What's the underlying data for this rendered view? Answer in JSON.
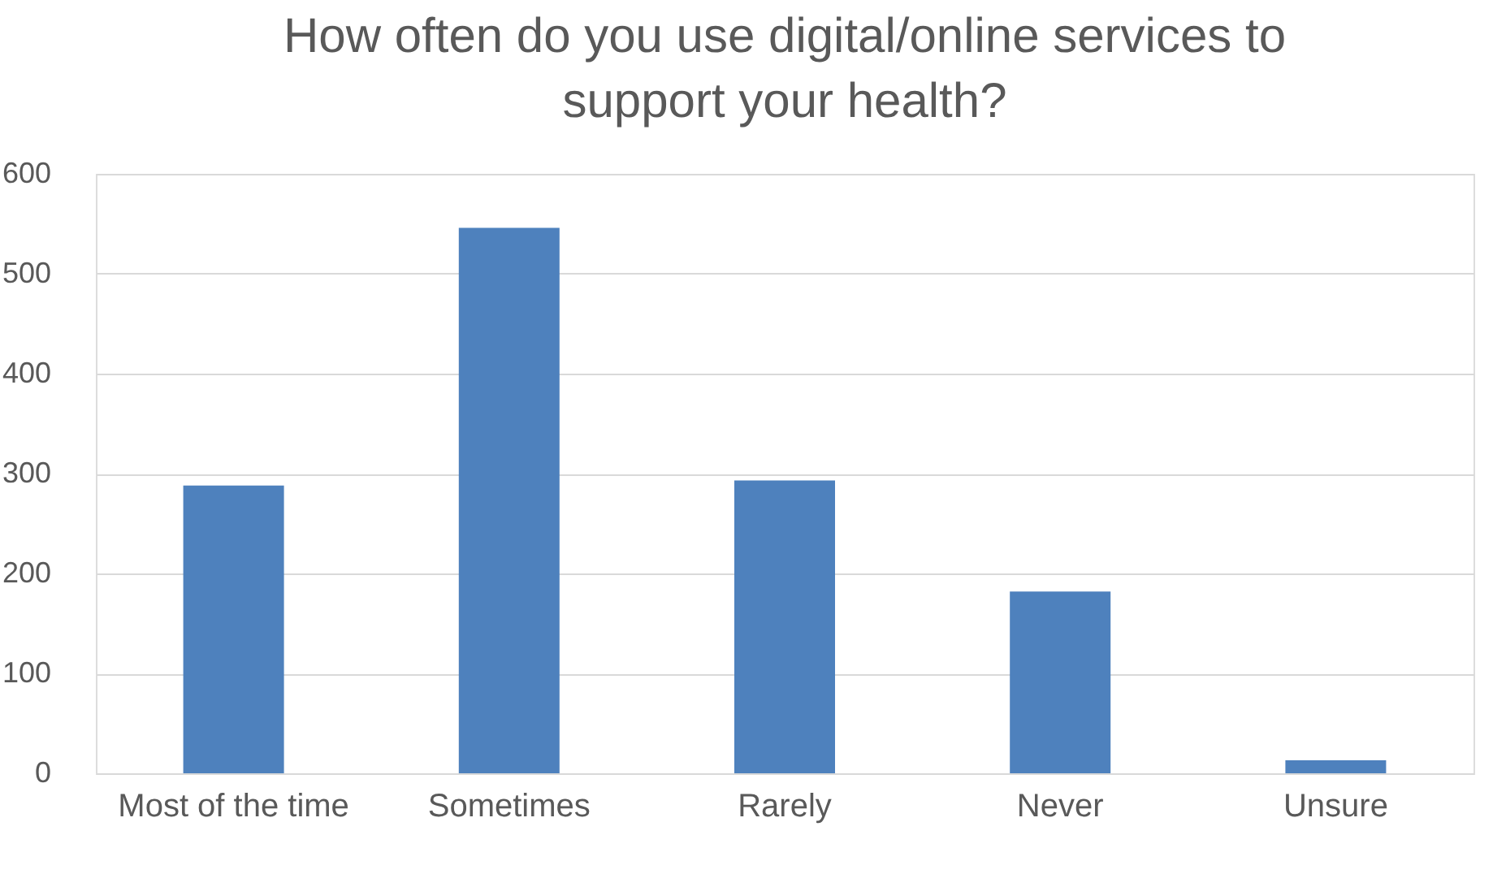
{
  "chart_data": {
    "type": "bar",
    "title": "How often do you use digital/online services to support your health?",
    "categories": [
      "Most of the time",
      "Sometimes",
      "Rarely",
      "Never",
      "Unsure"
    ],
    "values": [
      288,
      546,
      293,
      182,
      13
    ],
    "color": "#4e81bd",
    "ylim": [
      0,
      600
    ],
    "yticks": [
      0,
      100,
      200,
      300,
      400,
      500,
      600
    ],
    "grid": "y"
  }
}
